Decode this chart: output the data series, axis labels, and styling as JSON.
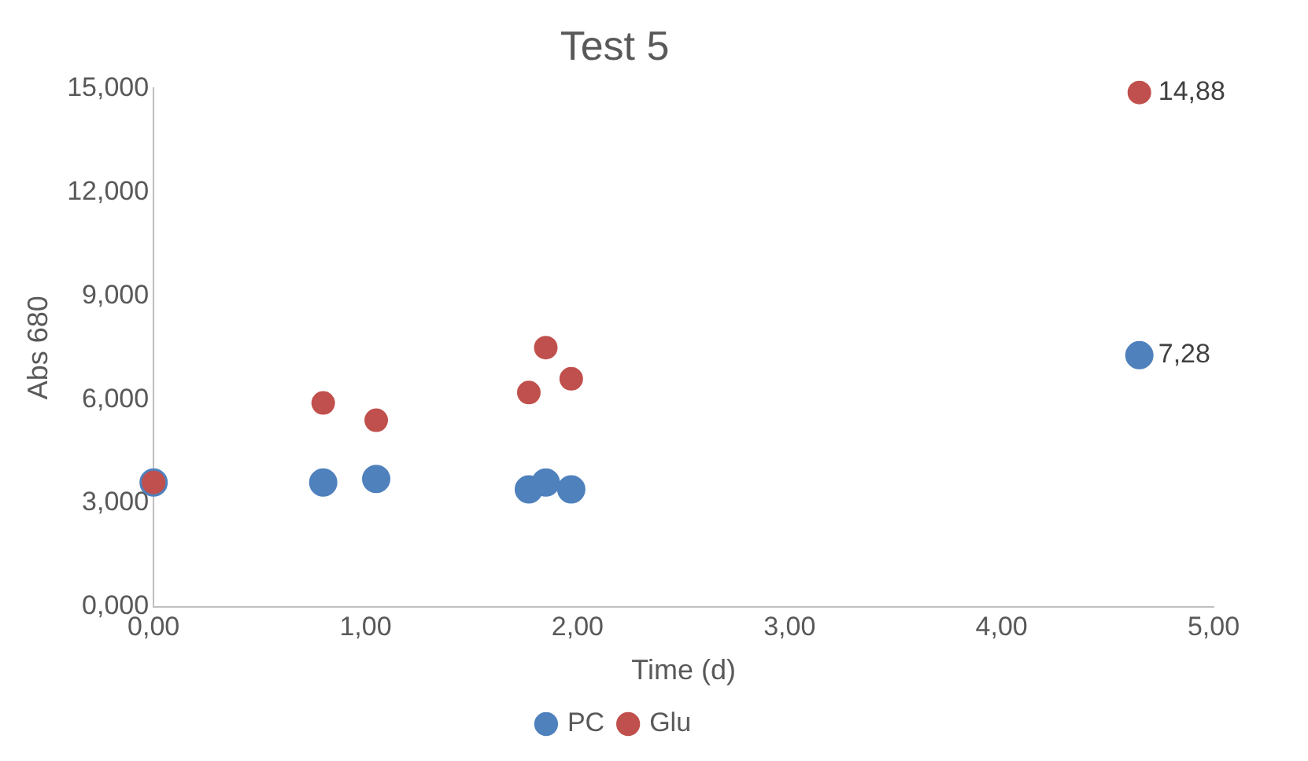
{
  "chart_data": {
    "type": "scatter",
    "title": "Test 5",
    "xlabel": "Time (d)",
    "ylabel": "Abs 680",
    "xlim": [
      0,
      5
    ],
    "xticks": [
      {
        "value": 0,
        "label": "0,00"
      },
      {
        "value": 1,
        "label": "1,00"
      },
      {
        "value": 2,
        "label": "2,00"
      },
      {
        "value": 3,
        "label": "3,00"
      },
      {
        "value": 4,
        "label": "4,00"
      },
      {
        "value": 5,
        "label": "5,00"
      }
    ],
    "ylim": [
      0,
      15
    ],
    "yticks": [
      {
        "value": 0,
        "label": "0,000"
      },
      {
        "value": 3,
        "label": "3,000"
      },
      {
        "value": 6,
        "label": "6,000"
      },
      {
        "value": 9,
        "label": "9,000"
      },
      {
        "value": 12,
        "label": "12,000"
      },
      {
        "value": 15,
        "label": "15,000"
      }
    ],
    "series": [
      {
        "name": "PC",
        "color": "#4f81bd",
        "x": [
          0,
          0.8,
          1.05,
          1.77,
          1.85,
          1.97,
          4.65
        ],
        "values": [
          3.6,
          3.6,
          3.7,
          3.4,
          3.6,
          3.4,
          7.28
        ],
        "value_labels": [
          null,
          null,
          null,
          null,
          null,
          null,
          "7,28"
        ]
      },
      {
        "name": "Glu",
        "color": "#c0504d",
        "x": [
          0,
          0.8,
          1.05,
          1.77,
          1.85,
          1.97,
          4.65
        ],
        "values": [
          3.6,
          5.9,
          5.4,
          6.2,
          7.5,
          6.6,
          14.88
        ],
        "value_labels": [
          null,
          null,
          null,
          null,
          null,
          null,
          "14,88"
        ]
      }
    ],
    "grid": false,
    "legend": "bottom",
    "marker": "circle"
  }
}
